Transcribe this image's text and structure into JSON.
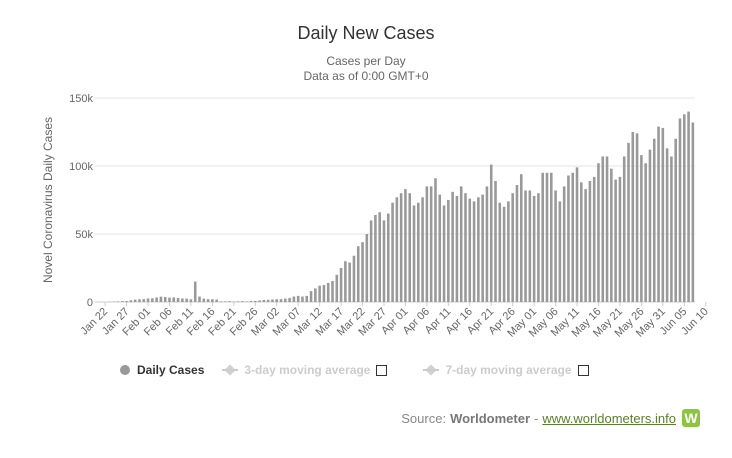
{
  "chart_data": {
    "type": "bar",
    "title": "Daily New Cases",
    "subtitle_lines": [
      "Cases per Day",
      "Data as of 0:00 GMT+0"
    ],
    "ylabel": "Novel Coronavirus Daily Cases",
    "xlabel": "",
    "ylim": [
      0,
      150000
    ],
    "yticks": [
      0,
      50000,
      100000,
      150000
    ],
    "ytick_labels": [
      "0",
      "50k",
      "100k",
      "150k"
    ],
    "xtick_labels": [
      "Jan 22",
      "Jan 27",
      "Feb 01",
      "Feb 06",
      "Feb 11",
      "Feb 16",
      "Feb 21",
      "Feb 26",
      "Mar 02",
      "Mar 07",
      "Mar 12",
      "Mar 17",
      "Mar 22",
      "Mar 27",
      "Apr 01",
      "Apr 06",
      "Apr 11",
      "Apr 16",
      "Apr 21",
      "Apr 26",
      "May 01",
      "May 06",
      "May 11",
      "May 16",
      "May 21",
      "May 26",
      "May 31",
      "Jun 05",
      "Jun 10"
    ],
    "xtick_every": 5,
    "start_date": "Jan 22",
    "grid": true,
    "series": [
      {
        "name": "Daily Cases",
        "color": "#999999",
        "values": [
          0,
          100,
          250,
          400,
          600,
          700,
          1300,
          1800,
          2000,
          2100,
          2600,
          2700,
          3300,
          3900,
          3700,
          3200,
          3400,
          3000,
          2600,
          2500,
          2000,
          15000,
          4000,
          2500,
          2100,
          2000,
          1800,
          500,
          500,
          600,
          300,
          500,
          600,
          400,
          700,
          800,
          1100,
          1500,
          1600,
          1800,
          2000,
          2100,
          2500,
          3000,
          4000,
          4500,
          4000,
          4500,
          8000,
          10000,
          12000,
          12500,
          14000,
          15500,
          20000,
          25000,
          30000,
          29000,
          34000,
          41000,
          44000,
          50000,
          60000,
          64000,
          66000,
          60000,
          65000,
          73000,
          77000,
          80000,
          83000,
          80000,
          71000,
          73000,
          77000,
          85000,
          85000,
          91000,
          79000,
          71000,
          75000,
          81000,
          78000,
          85000,
          80000,
          76000,
          74000,
          77000,
          79000,
          85000,
          101000,
          89000,
          73000,
          70000,
          74000,
          80000,
          86000,
          94000,
          82000,
          82000,
          78000,
          80000,
          95000,
          95000,
          95000,
          82000,
          74000,
          85000,
          93000,
          95000,
          99000,
          88000,
          83000,
          89000,
          92000,
          102000,
          107000,
          107000,
          98000,
          90000,
          92000,
          107000,
          117000,
          125000,
          124000,
          108000,
          102000,
          112000,
          120000,
          129000,
          128000,
          113000,
          107000,
          120000,
          135000,
          138000,
          140000,
          132000
        ]
      }
    ],
    "legend": [
      {
        "label": "Daily Cases",
        "color": "#999999",
        "active": true
      },
      {
        "label": "3-day moving average",
        "color": "#cccccc",
        "active": false
      },
      {
        "label": "7-day moving average",
        "color": "#cccccc",
        "active": false
      }
    ]
  },
  "source": {
    "prefix": "Source:",
    "name": "Worldometer",
    "separator": "-",
    "link": "www.worldometers.info",
    "logo_letter": "W"
  }
}
